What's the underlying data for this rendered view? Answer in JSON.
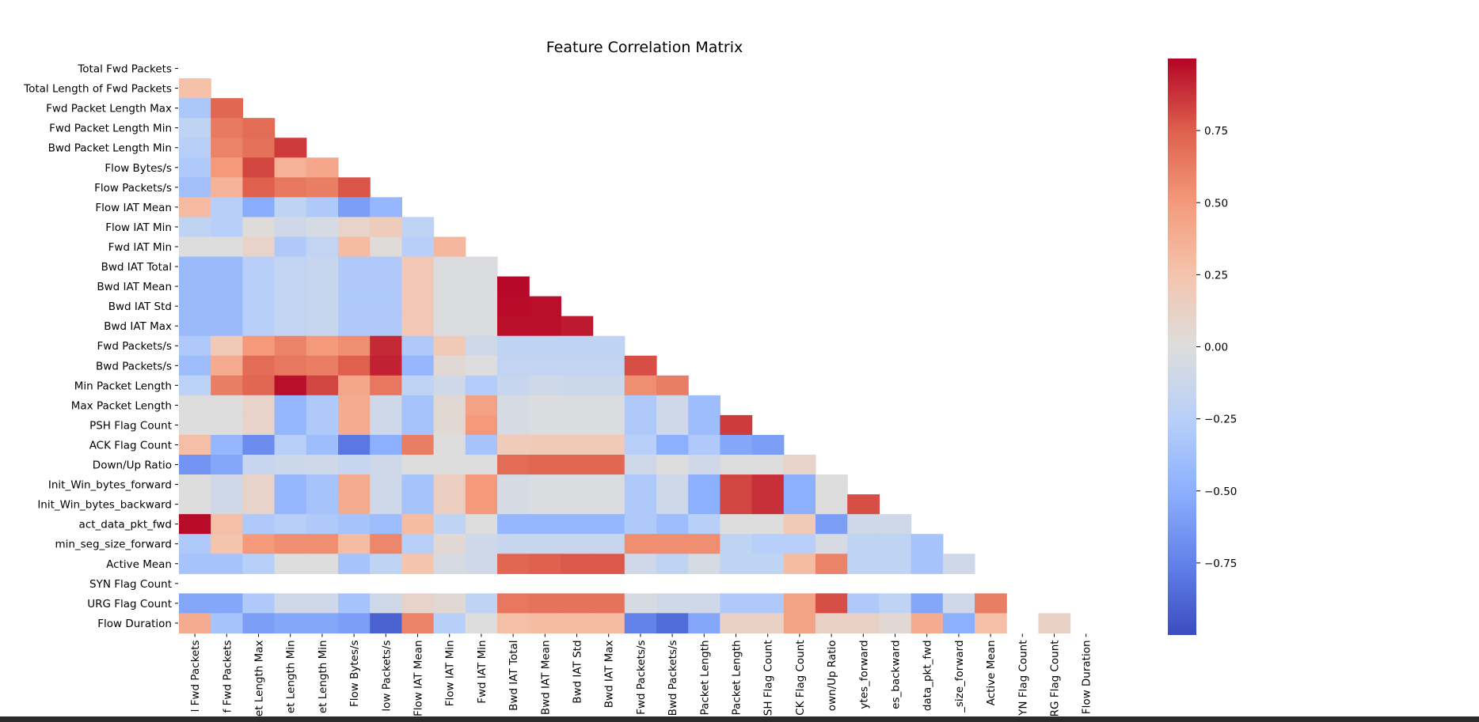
{
  "chart_data": {
    "type": "heatmap",
    "title": "Feature Correlation Matrix",
    "mask": "upper-triangle-including-diagonal",
    "colormap": "coolwarm",
    "colorbar": {
      "range": [
        -1,
        1
      ],
      "ticks": [
        -0.75,
        -0.5,
        -0.25,
        0.0,
        0.25,
        0.5,
        0.75
      ],
      "tick_labels": [
        "−0.75",
        "−0.50",
        "−0.25",
        "0.00",
        "0.25",
        "0.50",
        "0.75"
      ]
    },
    "row_labels": [
      "Total Fwd Packets",
      "Total Length of Fwd Packets",
      "Fwd Packet Length Max",
      "Fwd Packet Length Min",
      "Bwd Packet Length Min",
      "Flow Bytes/s",
      "Flow Packets/s",
      "Flow IAT Mean",
      "Flow IAT Min",
      "Fwd IAT Min",
      "Bwd IAT Total",
      "Bwd IAT Mean",
      "Bwd IAT Std",
      "Bwd IAT Max",
      "Fwd Packets/s",
      "Bwd Packets/s",
      "Min Packet Length",
      "Max Packet Length",
      "PSH Flag Count",
      "ACK Flag Count",
      "Down/Up Ratio",
      "Init_Win_bytes_forward",
      "Init_Win_bytes_backward",
      "act_data_pkt_fwd",
      "min_seg_size_forward",
      "Active Mean",
      "SYN Flag Count",
      "URG Flag Count",
      "Flow Duration"
    ],
    "column_labels_visible": [
      "l Fwd Packets",
      "f Fwd Packets",
      "et Length Max",
      "et Length Min",
      "et Length Min",
      "Flow Bytes/s",
      "low Packets/s",
      "Flow IAT Mean",
      "Flow IAT Min",
      "Fwd IAT Min",
      "Bwd IAT Total",
      "Bwd IAT Mean",
      "Bwd IAT Std",
      "Bwd IAT Max",
      "Fwd Packets/s",
      "Bwd Packets/s",
      "Packet Length",
      "Packet Length",
      "SH Flag Count",
      "CK Flag Count",
      "own/Up Ratio",
      "ytes_forward",
      "es_backward",
      "data_pkt_fwd",
      "_size_forward",
      "Active Mean",
      "YN Flag Count",
      "RG Flag Count",
      "Flow Duration"
    ],
    "values": [
      [],
      [
        0.27
      ],
      [
        -0.32,
        0.72
      ],
      [
        -0.2,
        0.64,
        0.7
      ],
      [
        -0.25,
        0.6,
        0.68,
        0.85
      ],
      [
        -0.3,
        0.5,
        0.82,
        0.36,
        0.42
      ],
      [
        -0.38,
        0.35,
        0.75,
        0.65,
        0.62,
        0.78
      ],
      [
        0.31,
        -0.25,
        -0.52,
        -0.2,
        -0.3,
        -0.6,
        -0.45
      ],
      [
        -0.2,
        -0.25,
        0.02,
        -0.1,
        -0.05,
        0.1,
        0.18,
        -0.2
      ],
      [
        0.0,
        0.0,
        0.1,
        -0.3,
        -0.18,
        0.3,
        0.02,
        -0.25,
        0.33
      ],
      [
        -0.42,
        -0.42,
        -0.25,
        -0.18,
        -0.15,
        -0.3,
        -0.3,
        0.22,
        -0.02,
        -0.02
      ],
      [
        -0.42,
        -0.42,
        -0.25,
        -0.18,
        -0.15,
        -0.3,
        -0.3,
        0.22,
        -0.02,
        -0.02,
        0.99
      ],
      [
        -0.42,
        -0.42,
        -0.25,
        -0.18,
        -0.15,
        -0.3,
        -0.3,
        0.22,
        -0.02,
        -0.02,
        0.98,
        0.97
      ],
      [
        -0.42,
        -0.42,
        -0.25,
        -0.18,
        -0.15,
        -0.3,
        -0.3,
        0.22,
        -0.02,
        -0.02,
        0.97,
        0.97,
        0.94
      ],
      [
        -0.3,
        0.2,
        0.5,
        0.6,
        0.5,
        0.55,
        0.9,
        -0.3,
        0.2,
        -0.1,
        -0.2,
        -0.2,
        -0.2,
        -0.2
      ],
      [
        -0.4,
        0.4,
        0.7,
        0.65,
        0.62,
        0.75,
        0.92,
        -0.45,
        0.05,
        0.0,
        -0.18,
        -0.18,
        -0.18,
        -0.18,
        0.8
      ],
      [
        -0.22,
        0.62,
        0.72,
        0.97,
        0.82,
        0.42,
        0.65,
        -0.2,
        -0.1,
        -0.28,
        -0.15,
        -0.1,
        -0.12,
        -0.12,
        0.55,
        0.62
      ],
      [
        0.0,
        0.0,
        0.1,
        -0.45,
        -0.3,
        0.4,
        -0.1,
        -0.35,
        0.05,
        0.45,
        -0.05,
        -0.02,
        -0.02,
        -0.02,
        -0.3,
        -0.1,
        -0.4
      ],
      [
        0.0,
        0.0,
        0.1,
        -0.45,
        -0.3,
        0.4,
        -0.1,
        -0.35,
        0.05,
        0.5,
        -0.05,
        -0.02,
        -0.02,
        -0.02,
        -0.3,
        -0.1,
        -0.4,
        0.85
      ],
      [
        0.28,
        -0.45,
        -0.7,
        -0.25,
        -0.4,
        -0.8,
        -0.5,
        0.62,
        0.0,
        -0.35,
        0.18,
        0.2,
        0.2,
        0.2,
        -0.25,
        -0.5,
        -0.3,
        -0.55,
        -0.6
      ],
      [
        -0.65,
        -0.55,
        -0.15,
        -0.12,
        -0.1,
        -0.15,
        -0.1,
        0.0,
        0.0,
        0.0,
        0.7,
        0.72,
        0.72,
        0.72,
        -0.1,
        0.0,
        -0.1,
        0.0,
        0.0,
        0.1
      ],
      [
        0.0,
        -0.1,
        0.1,
        -0.45,
        -0.35,
        0.4,
        -0.1,
        -0.35,
        0.15,
        0.5,
        -0.05,
        -0.02,
        -0.02,
        -0.02,
        -0.3,
        -0.1,
        -0.5,
        0.82,
        0.88,
        -0.5,
        0.0
      ],
      [
        0.0,
        -0.1,
        0.1,
        -0.45,
        -0.35,
        0.4,
        -0.1,
        -0.35,
        0.15,
        0.5,
        -0.05,
        -0.02,
        -0.02,
        -0.02,
        -0.3,
        -0.1,
        -0.5,
        0.82,
        0.88,
        -0.5,
        0.0,
        0.8
      ],
      [
        0.98,
        0.28,
        -0.3,
        -0.25,
        -0.3,
        -0.35,
        -0.4,
        0.3,
        -0.2,
        0.0,
        -0.45,
        -0.45,
        -0.45,
        -0.45,
        -0.3,
        -0.4,
        -0.25,
        0.0,
        0.0,
        0.2,
        -0.6,
        -0.1,
        -0.1
      ],
      [
        -0.3,
        0.25,
        0.5,
        0.55,
        0.55,
        0.3,
        0.58,
        -0.25,
        0.05,
        -0.1,
        -0.15,
        -0.15,
        -0.15,
        -0.15,
        0.55,
        0.55,
        0.55,
        -0.2,
        -0.25,
        -0.25,
        -0.05,
        -0.2,
        -0.2,
        -0.35
      ],
      [
        -0.35,
        -0.35,
        -0.25,
        0.0,
        0.0,
        -0.35,
        -0.2,
        0.25,
        -0.05,
        -0.1,
        0.72,
        0.75,
        0.77,
        0.77,
        -0.1,
        -0.2,
        -0.05,
        -0.2,
        -0.2,
        0.3,
        0.6,
        -0.2,
        -0.2,
        -0.35,
        -0.1
      ],
      [],
      [
        -0.55,
        -0.55,
        -0.3,
        -0.1,
        -0.1,
        -0.35,
        -0.1,
        0.1,
        0.05,
        -0.2,
        0.65,
        0.67,
        0.67,
        0.67,
        -0.05,
        -0.1,
        -0.1,
        -0.3,
        -0.3,
        0.45,
        0.8,
        -0.3,
        -0.2,
        -0.55,
        -0.1,
        0.62
      ],
      [
        0.4,
        -0.35,
        -0.6,
        -0.55,
        -0.55,
        -0.6,
        -0.9,
        0.6,
        -0.25,
        0.0,
        0.28,
        0.3,
        0.3,
        0.3,
        -0.75,
        -0.85,
        -0.55,
        0.12,
        0.12,
        0.45,
        0.12,
        0.12,
        0.05,
        0.4,
        -0.5,
        0.28,
        null,
        0.12
      ]
    ]
  }
}
